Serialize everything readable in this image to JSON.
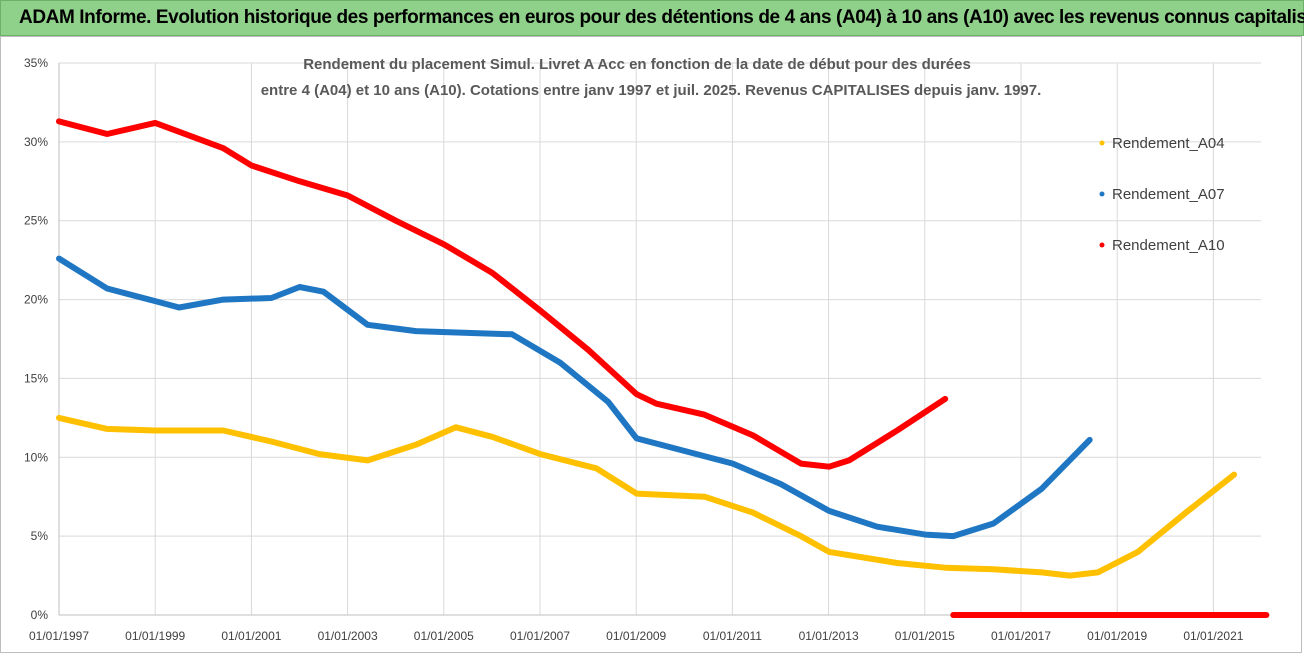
{
  "banner": {
    "title": "ADAM Informe. Evolution historique des performances en euros pour des détentions de 4 ans (A04) à 10 ans (A10) avec les revenus connus capitalisés",
    "background": "#8fd08a"
  },
  "chart_data": {
    "type": "line",
    "title_line1": "Rendement du placement Simul. Livret A Acc en fonction de la date de début pour des durées",
    "title_line2": "entre 4 (A04) et 10 ans (A10). Cotations entre janv 1997 et juil. 2025. Revenus CAPITALISES depuis janv. 1997.",
    "x_type": "date",
    "x_range": [
      "1997-01-01",
      "2022-06-01"
    ],
    "x_ticks": [
      "01/01/1997",
      "01/01/1999",
      "01/01/2001",
      "01/01/2003",
      "01/01/2005",
      "01/01/2007",
      "01/01/2009",
      "01/01/2011",
      "01/01/2013",
      "01/01/2015",
      "01/01/2017",
      "01/01/2019",
      "01/01/2021"
    ],
    "ylim": [
      0,
      0.35
    ],
    "y_ticks": [
      "0%",
      "5%",
      "10%",
      "15%",
      "20%",
      "25%",
      "30%",
      "35%"
    ],
    "grid": true,
    "legend_position": "right",
    "series": [
      {
        "name": "Rendement_A04",
        "color": "#ffc000",
        "points": [
          [
            "1997-01-01",
            0.125
          ],
          [
            "1998-01-01",
            0.118
          ],
          [
            "1999-01-01",
            0.117
          ],
          [
            "2000-06-01",
            0.117
          ],
          [
            "2001-06-01",
            0.11
          ],
          [
            "2002-06-01",
            0.102
          ],
          [
            "2003-06-01",
            0.098
          ],
          [
            "2004-06-01",
            0.108
          ],
          [
            "2005-04-01",
            0.119
          ],
          [
            "2006-01-01",
            0.113
          ],
          [
            "2007-01-01",
            0.102
          ],
          [
            "2008-03-01",
            0.093
          ],
          [
            "2009-01-01",
            0.077
          ],
          [
            "2010-06-01",
            0.075
          ],
          [
            "2011-06-01",
            0.065
          ],
          [
            "2012-06-01",
            0.05
          ],
          [
            "2013-01-01",
            0.04
          ],
          [
            "2014-06-01",
            0.033
          ],
          [
            "2015-06-01",
            0.03
          ],
          [
            "2016-06-01",
            0.029
          ],
          [
            "2017-06-01",
            0.027
          ],
          [
            "2018-01-01",
            0.025
          ],
          [
            "2018-08-01",
            0.027
          ],
          [
            "2019-06-01",
            0.04
          ],
          [
            "2020-06-01",
            0.065
          ],
          [
            "2021-06-01",
            0.089
          ]
        ]
      },
      {
        "name": "Rendement_A07",
        "color": "#1f77c4",
        "points": [
          [
            "1997-01-01",
            0.226
          ],
          [
            "1998-01-01",
            0.207
          ],
          [
            "1999-01-01",
            0.199
          ],
          [
            "1999-07-01",
            0.195
          ],
          [
            "2000-06-01",
            0.2
          ],
          [
            "2001-06-01",
            0.201
          ],
          [
            "2002-01-01",
            0.208
          ],
          [
            "2002-07-01",
            0.205
          ],
          [
            "2003-06-01",
            0.184
          ],
          [
            "2004-06-01",
            0.18
          ],
          [
            "2005-06-01",
            0.179
          ],
          [
            "2006-06-01",
            0.178
          ],
          [
            "2007-06-01",
            0.16
          ],
          [
            "2008-06-01",
            0.135
          ],
          [
            "2009-01-01",
            0.112
          ],
          [
            "2010-01-01",
            0.104
          ],
          [
            "2011-01-01",
            0.096
          ],
          [
            "2012-01-01",
            0.083
          ],
          [
            "2013-01-01",
            0.066
          ],
          [
            "2014-01-01",
            0.056
          ],
          [
            "2015-01-01",
            0.051
          ],
          [
            "2015-08-01",
            0.05
          ],
          [
            "2016-06-01",
            0.058
          ],
          [
            "2017-06-01",
            0.08
          ],
          [
            "2018-06-01",
            0.111
          ]
        ]
      },
      {
        "name": "Rendement_A10",
        "color": "#ff0000",
        "points": [
          [
            "1997-01-01",
            0.313
          ],
          [
            "1998-01-01",
            0.305
          ],
          [
            "1999-01-01",
            0.312
          ],
          [
            "2000-06-01",
            0.296
          ],
          [
            "2001-01-01",
            0.285
          ],
          [
            "2002-01-01",
            0.275
          ],
          [
            "2003-01-01",
            0.266
          ],
          [
            "2004-01-01",
            0.25
          ],
          [
            "2005-01-01",
            0.235
          ],
          [
            "2006-01-01",
            0.217
          ],
          [
            "2007-01-01",
            0.193
          ],
          [
            "2008-01-01",
            0.168
          ],
          [
            "2009-01-01",
            0.14
          ],
          [
            "2009-06-01",
            0.134
          ],
          [
            "2010-06-01",
            0.127
          ],
          [
            "2011-06-01",
            0.114
          ],
          [
            "2012-06-01",
            0.096
          ],
          [
            "2013-01-01",
            0.094
          ],
          [
            "2013-06-01",
            0.098
          ],
          [
            "2014-06-01",
            0.117
          ],
          [
            "2015-06-01",
            0.137
          ]
        ],
        "flat_zero_from": "2015-08-01",
        "flat_zero_to": "2022-02-01"
      }
    ]
  }
}
